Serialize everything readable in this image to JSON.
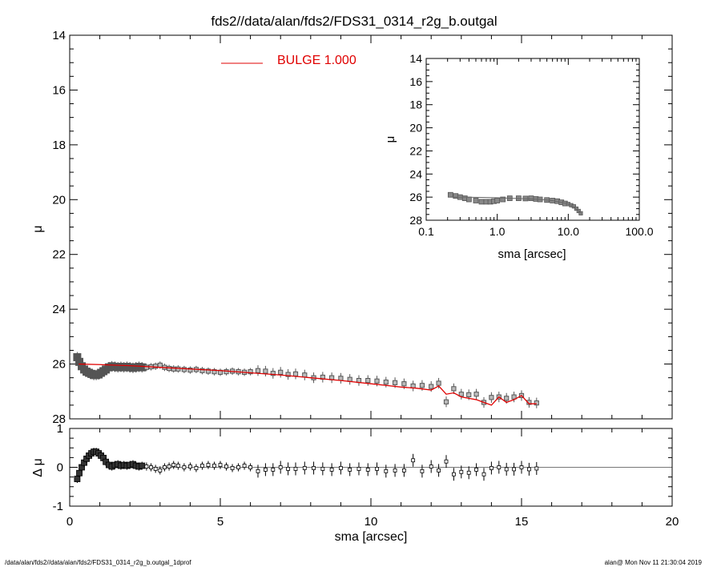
{
  "title": "fds2//data/alan/fds2/FDS31_0314_r2g_b.outgal",
  "footer_left": "/data/alan/fds2//data/alan/fds2/FDS31_0314_r2g_b.outgal_1dprof",
  "footer_right": "alan@  Mon Nov 11 21:30:04 2019",
  "legend_label": "BULGE  1.000",
  "colors": {
    "model": "#e00000",
    "data": "#555555",
    "residual": "#000000"
  },
  "chart_data": [
    {
      "id": "main",
      "type": "scatter",
      "xlabel": "sma [arcsec]",
      "ylabel": "μ",
      "xlim": [
        0,
        20
      ],
      "ylim": [
        28,
        14
      ],
      "x_ticks": [
        "0",
        "5",
        "10",
        "15",
        "20"
      ],
      "y_ticks": [
        "14",
        "16",
        "18",
        "20",
        "22",
        "24",
        "26",
        "28"
      ],
      "series": [
        {
          "name": "data",
          "x": [
            0.25,
            0.32,
            0.4,
            0.48,
            0.56,
            0.64,
            0.72,
            0.8,
            0.88,
            0.96,
            1.04,
            1.12,
            1.2,
            1.3,
            1.4,
            1.5,
            1.6,
            1.7,
            1.8,
            1.9,
            2.0,
            2.1,
            2.2,
            2.3,
            2.4,
            2.55,
            2.7,
            2.85,
            3.0,
            3.15,
            3.3,
            3.45,
            3.6,
            3.8,
            4.0,
            4.2,
            4.4,
            4.6,
            4.8,
            5.0,
            5.2,
            5.4,
            5.6,
            5.8,
            6.0,
            6.25,
            6.5,
            6.75,
            7.0,
            7.25,
            7.5,
            7.8,
            8.1,
            8.4,
            8.7,
            9.0,
            9.3,
            9.6,
            9.9,
            10.2,
            10.5,
            10.8,
            11.1,
            11.4,
            11.7,
            12.0,
            12.25,
            12.5,
            12.75,
            13.0,
            13.25,
            13.5,
            13.75,
            14.0,
            14.25,
            14.5,
            14.75,
            15.0,
            15.25,
            15.5
          ],
          "y": [
            25.75,
            25.92,
            26.08,
            26.2,
            26.28,
            26.32,
            26.36,
            26.4,
            26.4,
            26.38,
            26.32,
            26.26,
            26.2,
            26.12,
            26.08,
            26.1,
            26.12,
            26.1,
            26.12,
            26.1,
            26.12,
            26.14,
            26.12,
            26.1,
            26.12,
            26.12,
            26.1,
            26.08,
            26.04,
            26.12,
            26.16,
            26.18,
            26.18,
            26.2,
            26.22,
            26.2,
            26.24,
            26.26,
            26.28,
            26.3,
            26.28,
            26.26,
            26.28,
            26.3,
            26.28,
            26.24,
            26.26,
            26.34,
            26.3,
            26.38,
            26.36,
            26.4,
            26.5,
            26.48,
            26.5,
            26.52,
            26.56,
            26.6,
            26.6,
            26.62,
            26.66,
            26.68,
            26.72,
            26.8,
            26.78,
            26.82,
            26.7,
            27.38,
            26.9,
            27.1,
            27.12,
            27.1,
            27.4,
            27.22,
            27.2,
            27.25,
            27.2,
            27.15,
            27.4,
            27.42
          ]
        },
        {
          "name": "BULGE  1.000",
          "x": [
            0.3,
            1.0,
            2.0,
            3.0,
            4.0,
            5.0,
            6.0,
            7.0,
            8.0,
            9.0,
            10.0,
            10.5,
            11.0,
            11.5,
            12.0,
            12.25,
            12.5,
            12.75,
            13.0,
            13.25,
            13.5,
            13.75,
            14.0,
            14.25,
            14.5,
            14.75,
            15.0,
            15.25,
            15.5
          ],
          "y": [
            26.0,
            26.02,
            26.06,
            26.12,
            26.18,
            26.24,
            26.32,
            26.4,
            26.5,
            26.6,
            26.72,
            26.78,
            26.84,
            26.88,
            26.95,
            26.8,
            27.1,
            27.05,
            27.2,
            27.25,
            27.3,
            27.4,
            27.5,
            27.2,
            27.4,
            27.3,
            27.15,
            27.45,
            27.45
          ]
        }
      ]
    },
    {
      "id": "inset",
      "type": "scatter",
      "xlabel": "sma [arcsec]",
      "ylabel": "μ",
      "xscale": "log",
      "xlim": [
        0.1,
        100
      ],
      "ylim": [
        28,
        14
      ],
      "x_ticks": [
        "0.1",
        "1.0",
        "10.0",
        "100.0"
      ],
      "y_ticks": [
        "14",
        "16",
        "18",
        "20",
        "22",
        "24",
        "26",
        "28"
      ],
      "series": [
        {
          "name": "data",
          "x": [
            0.22,
            0.26,
            0.3,
            0.35,
            0.4,
            0.5,
            0.6,
            0.7,
            0.8,
            0.9,
            1.0,
            1.2,
            1.5,
            2.0,
            2.5,
            3.0,
            3.5,
            4.0,
            5.0,
            6.0,
            7.0,
            8.0,
            9.0,
            10.0,
            11.0,
            12.0,
            13.0,
            14.0,
            15.0
          ],
          "y": [
            25.8,
            25.9,
            26.0,
            26.1,
            26.2,
            26.3,
            26.4,
            26.4,
            26.4,
            26.35,
            26.3,
            26.2,
            26.1,
            26.1,
            26.12,
            26.1,
            26.16,
            26.2,
            26.25,
            26.3,
            26.35,
            26.45,
            26.55,
            26.6,
            26.7,
            26.8,
            27.0,
            27.2,
            27.4
          ]
        },
        {
          "name": "model",
          "x": [
            0.22,
            0.5,
            1.0,
            2.0,
            4.0,
            6.0,
            8.0,
            10.0,
            12.0,
            14.0,
            15.5
          ],
          "y": [
            26.0,
            26.02,
            26.05,
            26.12,
            26.2,
            26.3,
            26.45,
            26.6,
            26.85,
            27.2,
            27.45
          ]
        }
      ]
    },
    {
      "id": "residual",
      "type": "scatter",
      "xlabel": "sma [arcsec]",
      "ylabel": "Δ μ",
      "xlim": [
        0,
        20
      ],
      "ylim": [
        -1,
        1
      ],
      "x_ticks": [
        "0",
        "5",
        "10",
        "15",
        "20"
      ],
      "y_ticks": [
        "1",
        "0",
        "-1"
      ],
      "series": [
        {
          "name": "residual",
          "x": [
            0.25,
            0.32,
            0.4,
            0.48,
            0.56,
            0.64,
            0.72,
            0.8,
            0.88,
            0.96,
            1.04,
            1.12,
            1.2,
            1.3,
            1.4,
            1.5,
            1.6,
            1.7,
            1.8,
            1.9,
            2.0,
            2.1,
            2.2,
            2.3,
            2.4,
            2.55,
            2.7,
            2.85,
            3.0,
            3.15,
            3.3,
            3.45,
            3.6,
            3.8,
            4.0,
            4.2,
            4.4,
            4.6,
            4.8,
            5.0,
            5.2,
            5.4,
            5.6,
            5.8,
            6.0,
            6.25,
            6.5,
            6.75,
            7.0,
            7.25,
            7.5,
            7.8,
            8.1,
            8.4,
            8.7,
            9.0,
            9.3,
            9.6,
            9.9,
            10.2,
            10.5,
            10.8,
            11.1,
            11.4,
            11.7,
            12.0,
            12.25,
            12.5,
            12.75,
            13.0,
            13.25,
            13.5,
            13.75,
            14.0,
            14.25,
            14.5,
            14.75,
            15.0,
            15.25,
            15.5
          ],
          "y": [
            -0.3,
            -0.15,
            0.0,
            0.12,
            0.22,
            0.3,
            0.36,
            0.4,
            0.4,
            0.36,
            0.3,
            0.24,
            0.14,
            0.06,
            0.02,
            0.06,
            0.08,
            0.04,
            0.06,
            0.04,
            0.06,
            0.08,
            0.04,
            0.02,
            0.04,
            0.02,
            0.0,
            -0.04,
            -0.08,
            0.0,
            0.02,
            0.06,
            0.04,
            0.0,
            0.02,
            -0.02,
            0.04,
            0.06,
            0.04,
            0.06,
            0.02,
            -0.02,
            0.0,
            0.04,
            0.0,
            -0.1,
            -0.06,
            -0.06,
            0.0,
            -0.04,
            -0.04,
            -0.02,
            -0.02,
            -0.04,
            -0.06,
            -0.02,
            -0.06,
            -0.04,
            -0.06,
            -0.04,
            -0.1,
            -0.08,
            -0.08,
            0.18,
            -0.1,
            0.02,
            -0.08,
            0.15,
            -0.18,
            -0.12,
            -0.14,
            -0.06,
            -0.18,
            -0.02,
            0.0,
            -0.05,
            -0.05,
            0.0,
            -0.05,
            -0.03
          ]
        }
      ]
    }
  ]
}
